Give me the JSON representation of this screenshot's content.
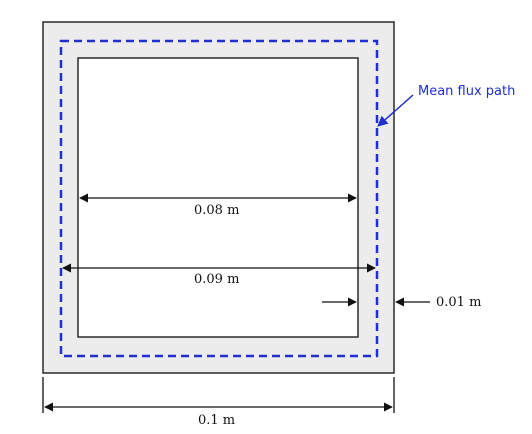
{
  "diagram": {
    "annotation": "Mean flux path",
    "inner_width_label": "0.08 m",
    "mean_path_width_label": "0.09 m",
    "thickness_label": "0.01 m",
    "outer_width_label": "0.1 m"
  },
  "colors": {
    "core_fill": "#ececec",
    "core_border": "#2a2a2a",
    "window_fill": "#ffffff",
    "flux_path": "#1f2fd0",
    "dimension_line": "#111111",
    "annotation_text": "#1f2fd0"
  }
}
